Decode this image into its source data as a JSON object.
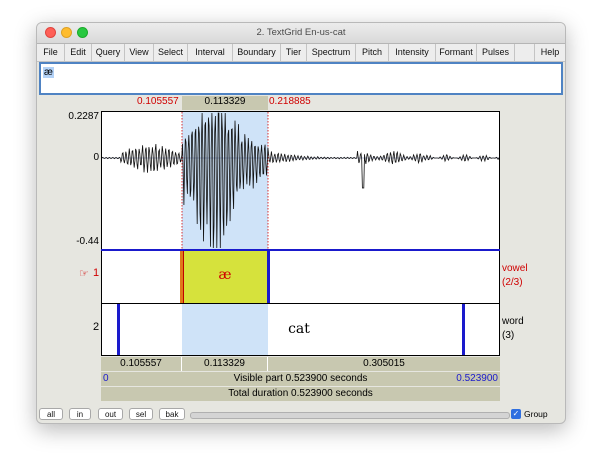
{
  "window": {
    "title": "2. TextGrid En-us-cat"
  },
  "menu": [
    "File",
    "Edit",
    "Query",
    "View",
    "Select",
    "Interval",
    "Boundary",
    "Tier",
    "Spectrum",
    "Pitch",
    "Intensity",
    "Formant",
    "Pulses",
    "",
    "Help"
  ],
  "text_field": {
    "value": "æ"
  },
  "selection": {
    "start": "0.105557",
    "duration": "0.113329",
    "end": "0.218885"
  },
  "waveform": {
    "max_label": "0.2287",
    "zero_label": "0",
    "min_label": "-0.44"
  },
  "tiers": [
    {
      "number": "1",
      "pointer": "☞",
      "name": "vowel",
      "count": "(2/3)",
      "interval_text": "æ",
      "selected": true
    },
    {
      "number": "2",
      "name": "word",
      "count": "(3)",
      "interval_text": "cat"
    }
  ],
  "interval_durations": [
    "0.105557",
    "0.113329",
    "0.305015"
  ],
  "visible": {
    "start": "0",
    "label": "Visible part 0.523900 seconds",
    "end": "0.523900"
  },
  "total": {
    "label": "Total duration 0.523900 seconds"
  },
  "buttons": [
    "all",
    "in",
    "out",
    "sel",
    "bak"
  ],
  "group": {
    "label": "Group",
    "checked": true
  }
}
